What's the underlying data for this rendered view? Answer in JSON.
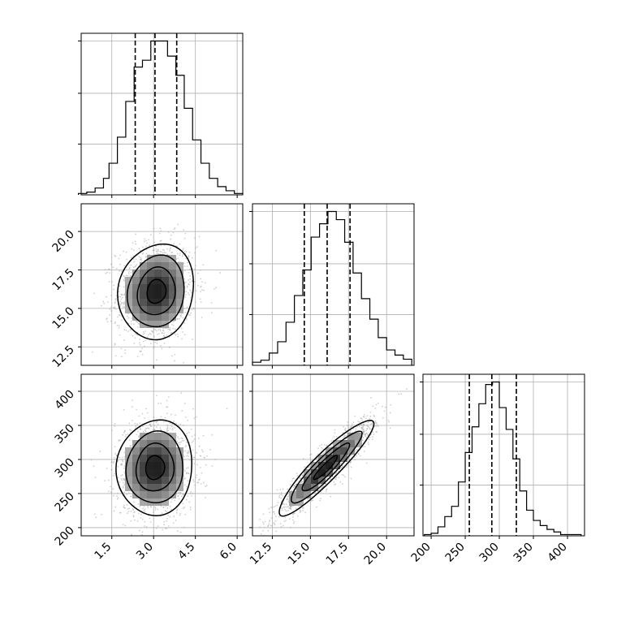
{
  "chart_data": [
    {
      "type": "histogram",
      "panel": "param1-marginal",
      "x_ticks": [
        "1.5",
        "3.0",
        "4.5",
        "6.0"
      ],
      "xlim": [
        0.4,
        6.2
      ],
      "bins": [
        0.3,
        0.6,
        0.9,
        1.2,
        1.4,
        1.7,
        2.0,
        2.3,
        2.6,
        2.9,
        3.2,
        3.5,
        3.8,
        4.1,
        4.4,
        4.7,
        5.0,
        5.3,
        5.6,
        5.9,
        6.2
      ],
      "counts": [
        1,
        2,
        5,
        12,
        23,
        42,
        68,
        93,
        98,
        112,
        112,
        101,
        87,
        63,
        40,
        23,
        12,
        6,
        3,
        1
      ],
      "quantile_lines": [
        2.34,
        3.05,
        3.83
      ]
    },
    {
      "type": "histogram",
      "panel": "param2-marginal",
      "x_ticks": [
        "12.5",
        "15.0",
        "17.5",
        "20.0"
      ],
      "xlim": [
        11.2,
        21.8
      ],
      "bins": [
        11.2,
        11.75,
        12.3,
        12.85,
        13.4,
        13.95,
        14.5,
        15.05,
        15.6,
        16.15,
        16.7,
        17.25,
        17.8,
        18.35,
        18.9,
        19.45,
        20.0,
        20.55,
        21.1,
        21.65
      ],
      "counts": [
        3,
        5,
        12,
        23,
        42,
        68,
        93,
        125,
        138,
        150,
        142,
        120,
        90,
        65,
        45,
        27,
        15,
        10,
        6
      ],
      "quantile_lines": [
        14.6,
        16.1,
        17.6
      ]
    },
    {
      "type": "histogram",
      "panel": "param3-marginal",
      "x_ticks": [
        "200",
        "250",
        "300",
        "350",
        "400"
      ],
      "xlim": [
        188,
        425
      ],
      "bins": [
        190,
        200,
        210,
        220,
        230,
        240,
        250,
        260,
        270,
        280,
        290,
        300,
        310,
        320,
        330,
        340,
        350,
        360,
        370,
        380,
        390,
        400,
        410,
        420
      ],
      "counts": [
        1,
        2,
        7,
        15,
        23,
        42,
        65,
        85,
        103,
        118,
        120,
        100,
        83,
        60,
        35,
        20,
        12,
        8,
        5,
        3,
        1,
        1,
        1
      ],
      "quantile_lines": [
        256,
        289,
        325
      ]
    },
    {
      "type": "2d-density",
      "panel": "param2-vs-param1",
      "x_ticks": [
        "1.5",
        "3.0",
        "4.5",
        "6.0"
      ],
      "y_ticks": [
        "12.5",
        "15.0",
        "17.5",
        "20.0"
      ],
      "xlim": [
        0.4,
        6.2
      ],
      "ylim": [
        11.3,
        21.8
      ],
      "center": [
        3.1,
        16.1
      ],
      "sigma": [
        0.68,
        1.55
      ],
      "correlation": 0.1,
      "contour_levels": [
        0.5,
        1.0,
        1.5,
        2.0
      ]
    },
    {
      "type": "2d-density",
      "panel": "param3-vs-param1",
      "x_ticks": [
        "1.5",
        "3.0",
        "4.5",
        "6.0"
      ],
      "y_ticks": [
        "200",
        "250",
        "300",
        "350",
        "400"
      ],
      "xlim": [
        0.4,
        6.2
      ],
      "ylim": [
        188,
        425
      ],
      "center": [
        3.05,
        288
      ],
      "sigma": [
        0.68,
        35
      ],
      "correlation": 0.05,
      "contour_levels": [
        0.5,
        1.0,
        1.5,
        2.0
      ]
    },
    {
      "type": "2d-density",
      "panel": "param3-vs-param2",
      "x_ticks": [
        "12.5",
        "15.0",
        "17.5",
        "20.0"
      ],
      "y_ticks": [
        "200",
        "250",
        "300",
        "350",
        "400"
      ],
      "xlim": [
        11.2,
        21.8
      ],
      "ylim": [
        188,
        425
      ],
      "center": [
        16.0,
        288
      ],
      "sigma": [
        1.55,
        35
      ],
      "correlation": 0.92,
      "contour_levels": [
        0.5,
        1.0,
        1.5,
        2.0
      ]
    }
  ]
}
